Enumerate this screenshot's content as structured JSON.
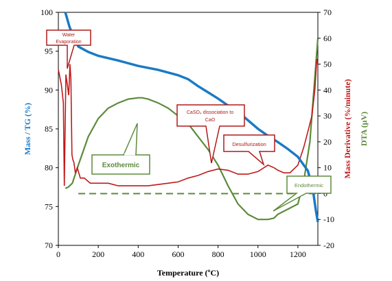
{
  "chart_data": {
    "type": "line",
    "xlabel": "Temperature (ºC)",
    "ylabel_left": "Mass / TG (%)",
    "ylabel_right_1": "Mass Derivative (%/minute)",
    "ylabel_right_2": "DTA (µV)",
    "xlim": [
      0,
      1300
    ],
    "ylim_left": [
      70,
      100
    ],
    "ylim_right": [
      -20,
      70
    ],
    "x_ticks": [
      "0",
      "200",
      "400",
      "600",
      "800",
      "1000",
      "1200"
    ],
    "y_left_ticks": [
      "70",
      "75",
      "80",
      "85",
      "90",
      "95",
      "100"
    ],
    "y_right_ticks": [
      "-20",
      "-10",
      "0",
      "10",
      "20",
      "30",
      "40",
      "50",
      "60",
      "70"
    ],
    "colors": {
      "tg": "#1a7ac4",
      "dtg": "#c01818",
      "dta": "#5b8a3a"
    },
    "series": [
      {
        "key": "tg",
        "axis": "left",
        "x": [
          35,
          55,
          80,
          100,
          150,
          200,
          300,
          400,
          500,
          600,
          650,
          700,
          750,
          800,
          850,
          900,
          950,
          1000,
          1050,
          1100,
          1150,
          1200,
          1250,
          1275,
          1290,
          1300
        ],
        "y": [
          100,
          98.2,
          96.5,
          95.6,
          94.9,
          94.4,
          93.8,
          93.1,
          92.6,
          91.9,
          91.4,
          90.5,
          89.7,
          88.9,
          88.0,
          87.2,
          86.1,
          85.0,
          84.1,
          83.3,
          82.4,
          81.4,
          79.6,
          77.2,
          74.5,
          73.0
        ]
      },
      {
        "key": "dtg",
        "axis": "right",
        "x": [
          0,
          15,
          25,
          30,
          38,
          45,
          52,
          58,
          63,
          68,
          73,
          78,
          85,
          95,
          110,
          130,
          160,
          200,
          250,
          300,
          350,
          400,
          450,
          500,
          550,
          600,
          650,
          700,
          750,
          800,
          850,
          900,
          950,
          1000,
          1030,
          1050,
          1080,
          1100,
          1130,
          1160,
          1200,
          1230,
          1250,
          1270,
          1285,
          1295,
          1300
        ],
        "y": [
          48,
          42,
          35,
          3,
          46,
          42,
          38,
          50,
          44,
          15,
          13,
          12,
          8,
          10,
          6,
          6,
          4,
          4,
          4,
          3,
          3,
          3,
          3,
          3.5,
          4,
          4.5,
          6,
          7,
          8.5,
          9.5,
          9,
          7.5,
          7.5,
          8.5,
          10,
          11,
          10,
          9,
          8,
          8,
          11,
          18,
          24,
          30,
          40,
          52,
          50
        ]
      },
      {
        "key": "dta",
        "axis": "right",
        "x": [
          35,
          50,
          70,
          100,
          150,
          200,
          250,
          300,
          350,
          400,
          420,
          450,
          500,
          550,
          600,
          650,
          700,
          750,
          800,
          850,
          900,
          950,
          1000,
          1050,
          1080,
          1100,
          1150,
          1200,
          1230,
          1260,
          1280,
          1300
        ],
        "y": [
          2,
          2.5,
          4,
          11,
          22,
          29,
          33,
          35,
          36.5,
          37,
          37,
          36.5,
          35,
          33,
          30,
          27,
          22,
          17,
          11,
          3,
          -4,
          -8,
          -10,
          -10,
          -9.5,
          -8,
          -6,
          -4,
          5,
          20,
          40,
          60
        ]
      }
    ],
    "reference_line": {
      "axis": "right",
      "y": 0,
      "style": "dashed"
    },
    "annotations": [
      {
        "text": "Water Evaporation",
        "lines": [
          "Water",
          "Evaporation"
        ]
      },
      {
        "text": "CaSO₄  dissociation to CaO",
        "lines": [
          "CaSO₄  dissociation to",
          "CaO"
        ]
      },
      {
        "text": "Desulfurization",
        "lines": [
          "Desulfurization"
        ]
      },
      {
        "text": "Exothermic",
        "lines": [
          "Exothermic"
        ]
      },
      {
        "text": "Endothermic",
        "lines": [
          "Endothermic"
        ]
      }
    ]
  }
}
